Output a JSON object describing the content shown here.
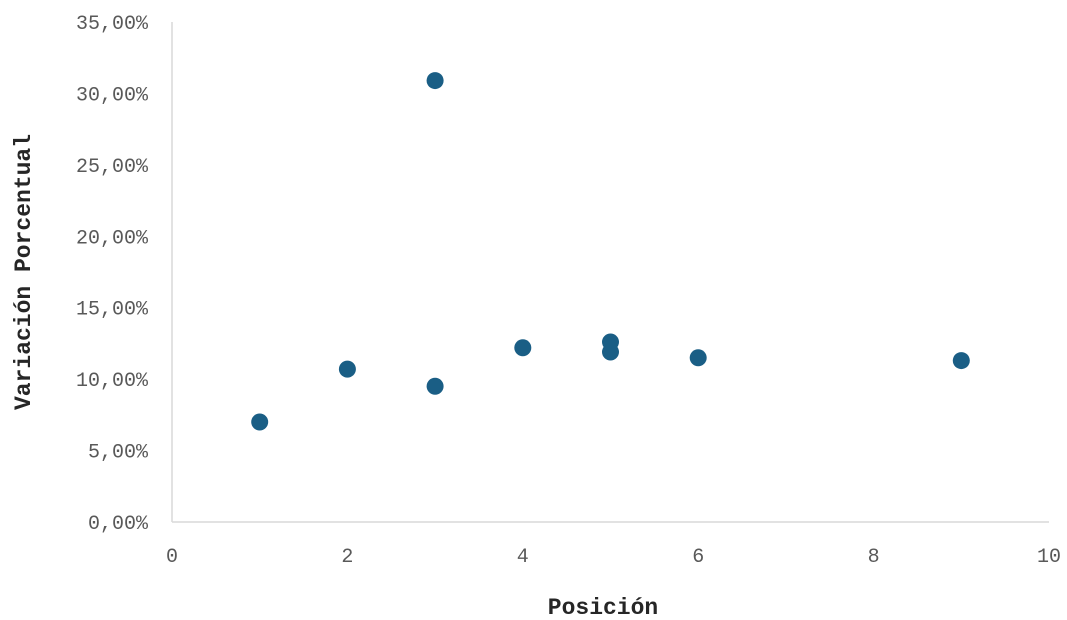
{
  "chart_data": {
    "type": "scatter",
    "title": "",
    "xlabel": "Posición",
    "ylabel": "Variación Porcentual",
    "xlim": [
      0,
      10
    ],
    "ylim": [
      0,
      0.35
    ],
    "x_ticks": [
      "0",
      "2",
      "4",
      "6",
      "8",
      "10"
    ],
    "y_ticks": [
      "0,00%",
      "5,00%",
      "10,00%",
      "15,00%",
      "20,00%",
      "25,00%",
      "30,00%",
      "35,00%"
    ],
    "grid": false,
    "legend": "none",
    "marker_color": "#1a5e85",
    "series": [
      {
        "points": [
          {
            "x": 1,
            "y": 0.07
          },
          {
            "x": 2,
            "y": 0.107
          },
          {
            "x": 3,
            "y": 0.309
          },
          {
            "x": 3,
            "y": 0.095
          },
          {
            "x": 4,
            "y": 0.122
          },
          {
            "x": 5,
            "y": 0.126
          },
          {
            "x": 5,
            "y": 0.119
          },
          {
            "x": 6,
            "y": 0.115
          },
          {
            "x": 9,
            "y": 0.113
          }
        ]
      }
    ]
  }
}
